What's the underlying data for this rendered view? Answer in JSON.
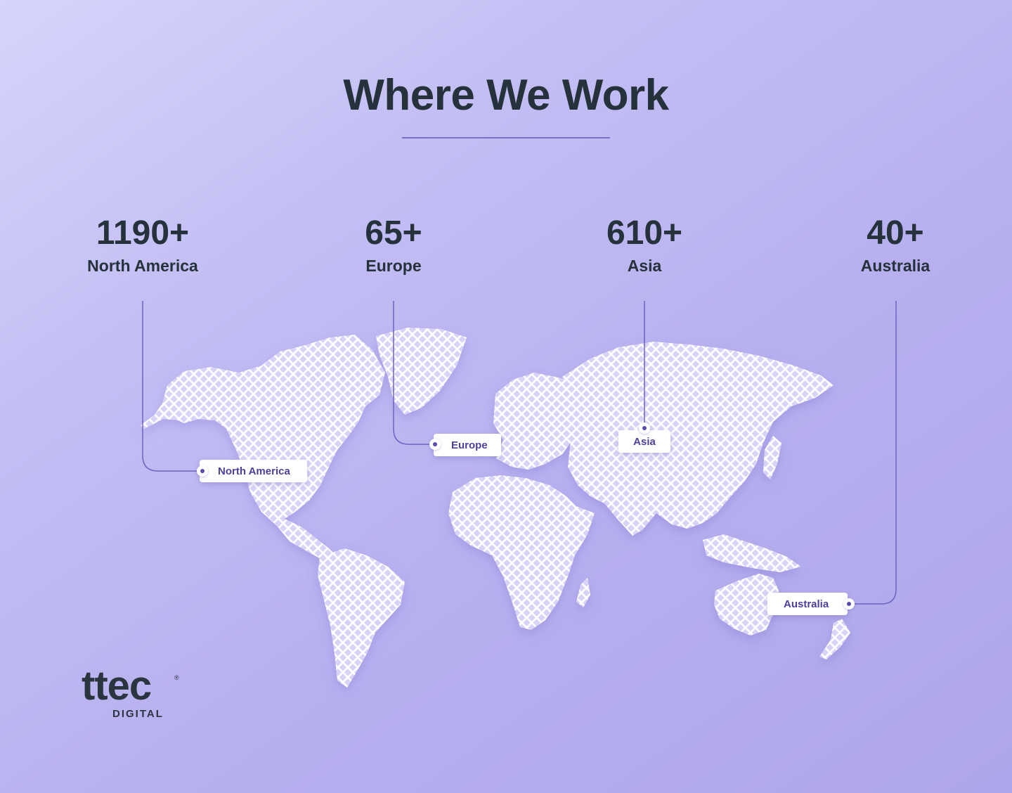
{
  "header": {
    "title": "Where We Work"
  },
  "stats": [
    {
      "value": "1190+",
      "label": "North America"
    },
    {
      "value": "65+",
      "label": "Europe"
    },
    {
      "value": "610+",
      "label": "Asia"
    },
    {
      "value": "40+",
      "label": "Australia"
    }
  ],
  "map_tags": {
    "north_america": "North America",
    "europe": "Europe",
    "asia": "Asia",
    "australia": "Australia"
  },
  "logo": {
    "wordmark": "ttec",
    "subtitle": "DIGITAL"
  },
  "colors": {
    "text": "#25313b",
    "accent": "#7b70c8",
    "tag_text": "#4d3f9c",
    "land_pattern": "#ffffff"
  }
}
